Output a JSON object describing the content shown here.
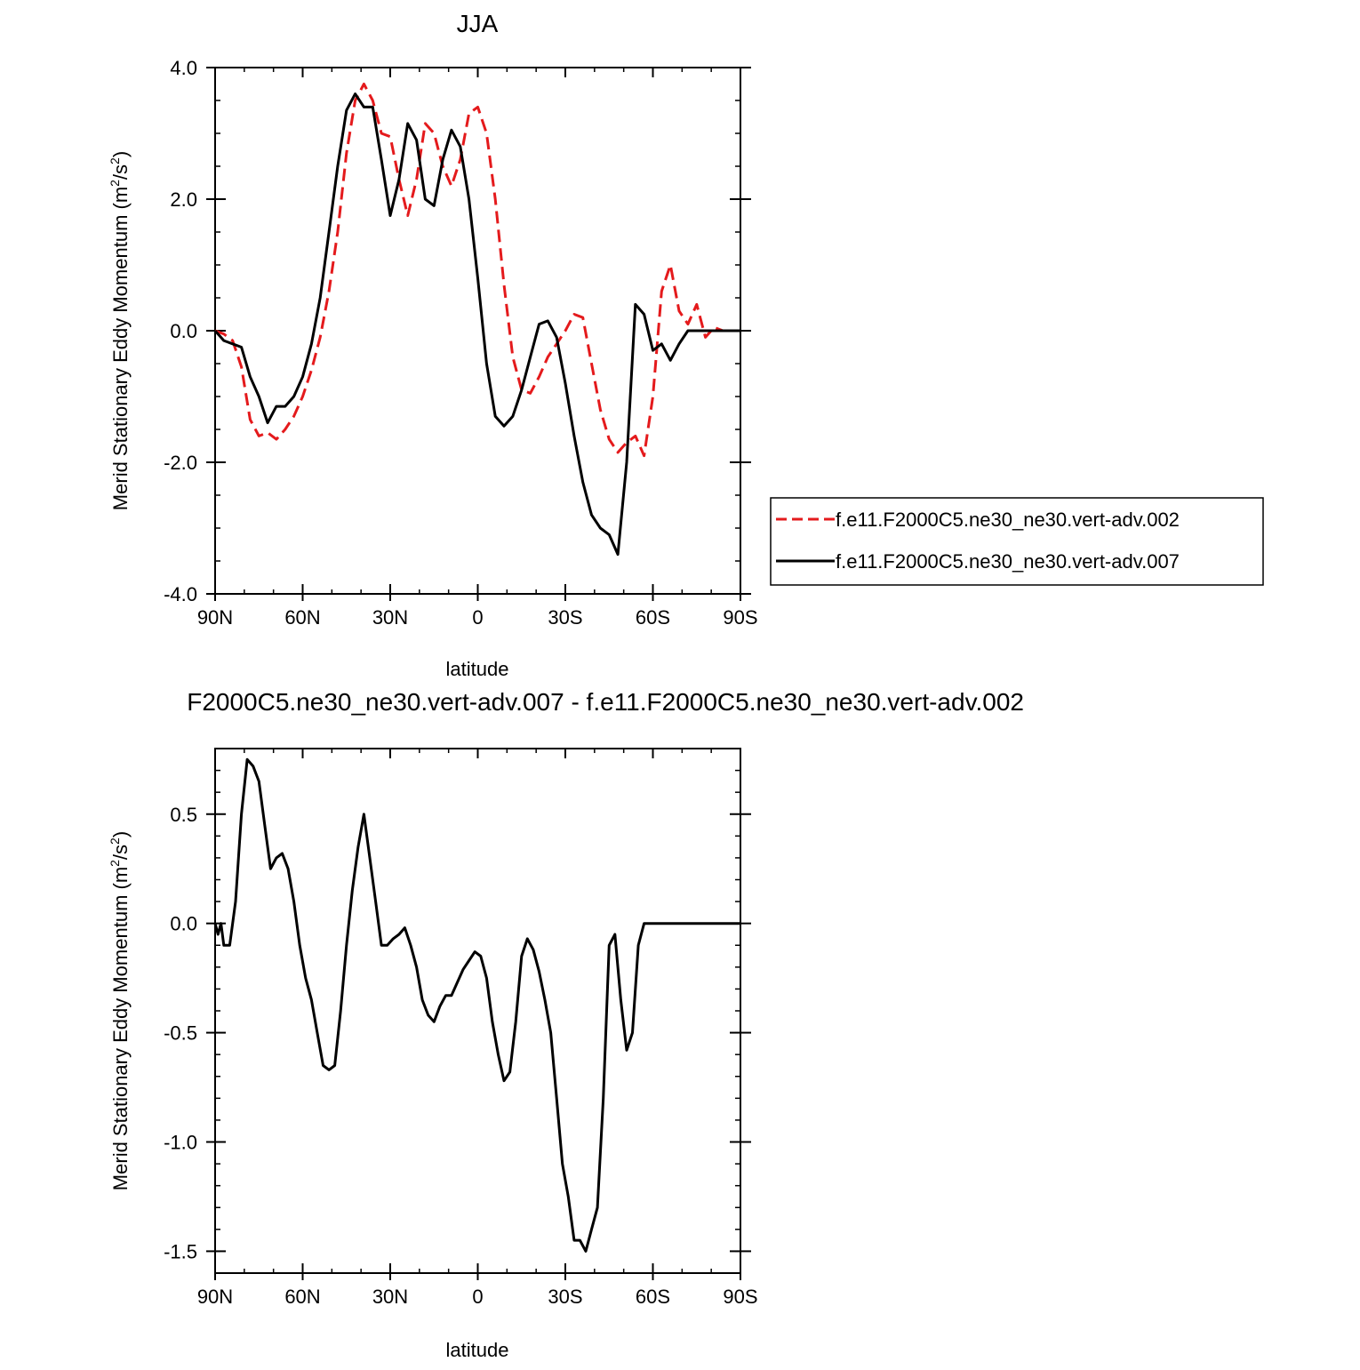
{
  "chart_data": [
    {
      "type": "line",
      "title": "JJA",
      "xlabel": "latitude",
      "ylabel": "Merid Stationary Eddy Momentum (m²/s²)",
      "ylabel_main": "Merid Stationary Eddy Momentum (m",
      "ylabel_sup1": "2",
      "ylabel_mid": "/s",
      "ylabel_sup2": "2",
      "ylabel_end": ")",
      "xlim": [
        90,
        -90
      ],
      "ylim": [
        -4,
        4
      ],
      "x_ticks": [
        {
          "value": 90,
          "label": "90N"
        },
        {
          "value": 60,
          "label": "60N"
        },
        {
          "value": 30,
          "label": "30N"
        },
        {
          "value": 0,
          "label": "0"
        },
        {
          "value": -30,
          "label": "30S"
        },
        {
          "value": -60,
          "label": "60S"
        },
        {
          "value": -90,
          "label": "90S"
        }
      ],
      "y_ticks": [
        {
          "value": 4,
          "label": "4.0"
        },
        {
          "value": 2,
          "label": "2.0"
        },
        {
          "value": 0,
          "label": "0.0"
        },
        {
          "value": -2,
          "label": "-2.0"
        },
        {
          "value": -4,
          "label": "-4.0"
        }
      ],
      "legend_position": "right",
      "series": [
        {
          "name": "f.e11.F2000C5.ne30_ne30.vert-adv.002",
          "color": "#e41a1c",
          "dash": "dashed",
          "x": [
            90,
            87,
            84,
            81,
            78,
            75,
            72,
            69,
            66,
            63,
            60,
            57,
            54,
            51,
            48,
            45,
            42,
            39,
            36,
            33,
            30,
            27,
            24,
            21,
            18,
            15,
            12,
            9,
            6,
            3,
            0,
            -3,
            -6,
            -9,
            -12,
            -15,
            -18,
            -21,
            -24,
            -27,
            -30,
            -33,
            -36,
            -39,
            -42,
            -45,
            -48,
            -51,
            -54,
            -57,
            -60,
            -63,
            -66,
            -69,
            -72,
            -75,
            -78,
            -81,
            -84,
            -87,
            -90
          ],
          "y": [
            0.0,
            -0.05,
            -0.15,
            -0.55,
            -1.35,
            -1.6,
            -1.55,
            -1.65,
            -1.5,
            -1.3,
            -1.0,
            -0.6,
            -0.1,
            0.6,
            1.5,
            2.7,
            3.5,
            3.75,
            3.5,
            3.0,
            2.95,
            2.3,
            1.75,
            2.3,
            3.15,
            3.0,
            2.5,
            2.2,
            2.6,
            3.3,
            3.4,
            3.0,
            2.0,
            0.7,
            -0.4,
            -0.9,
            -0.95,
            -0.7,
            -0.4,
            -0.2,
            0.0,
            0.25,
            0.2,
            -0.5,
            -1.2,
            -1.65,
            -1.85,
            -1.7,
            -1.6,
            -1.9,
            -1.0,
            0.6,
            1.0,
            0.3,
            0.1,
            0.4,
            -0.1,
            0.05,
            0.0,
            0.0,
            0.0
          ]
        },
        {
          "name": "f.e11.F2000C5.ne30_ne30.vert-adv.007",
          "color": "#000000",
          "dash": "solid",
          "x": [
            90,
            87,
            84,
            81,
            78,
            75,
            72,
            69,
            66,
            63,
            60,
            57,
            54,
            51,
            48,
            45,
            42,
            39,
            36,
            33,
            30,
            27,
            24,
            21,
            18,
            15,
            12,
            9,
            6,
            3,
            0,
            -3,
            -6,
            -9,
            -12,
            -15,
            -18,
            -21,
            -24,
            -27,
            -30,
            -33,
            -36,
            -39,
            -42,
            -45,
            -48,
            -51,
            -54,
            -57,
            -60,
            -63,
            -66,
            -69,
            -72,
            -75,
            -78,
            -81,
            -84,
            -87,
            -90
          ],
          "y": [
            0.0,
            -0.15,
            -0.2,
            -0.25,
            -0.7,
            -1.0,
            -1.4,
            -1.15,
            -1.15,
            -1.0,
            -0.7,
            -0.2,
            0.5,
            1.5,
            2.5,
            3.35,
            3.6,
            3.4,
            3.4,
            2.6,
            1.75,
            2.3,
            3.15,
            2.9,
            2.0,
            1.9,
            2.6,
            3.05,
            2.8,
            2.0,
            0.8,
            -0.5,
            -1.3,
            -1.45,
            -1.3,
            -0.9,
            -0.4,
            0.1,
            0.15,
            -0.1,
            -0.8,
            -1.6,
            -2.3,
            -2.8,
            -3.0,
            -3.1,
            -3.4,
            -2.0,
            0.4,
            0.25,
            -0.3,
            -0.2,
            -0.45,
            -0.2,
            0.0,
            0.0,
            0.0,
            0.0,
            0.0,
            0.0,
            0.0
          ]
        }
      ]
    },
    {
      "type": "line",
      "title": "F2000C5.ne30_ne30.vert-adv.007 - f.e11.F2000C5.ne30_ne30.vert-adv.002",
      "xlabel": "latitude",
      "ylabel": "Merid Stationary Eddy Momentum (m²/s²)",
      "ylabel_main": "Merid Stationary Eddy Momentum (m",
      "ylabel_sup1": "2",
      "ylabel_mid": "/s",
      "ylabel_sup2": "2",
      "ylabel_end": ")",
      "xlim": [
        90,
        -90
      ],
      "ylim": [
        -1.6,
        0.8
      ],
      "x_ticks": [
        {
          "value": 90,
          "label": "90N"
        },
        {
          "value": 60,
          "label": "60N"
        },
        {
          "value": 30,
          "label": "30N"
        },
        {
          "value": 0,
          "label": "0"
        },
        {
          "value": -30,
          "label": "30S"
        },
        {
          "value": -60,
          "label": "60S"
        },
        {
          "value": -90,
          "label": "90S"
        }
      ],
      "y_ticks": [
        {
          "value": 0.5,
          "label": "0.5"
        },
        {
          "value": 0.0,
          "label": "0.0"
        },
        {
          "value": -0.5,
          "label": "-0.5"
        },
        {
          "value": -1.0,
          "label": "-1.0"
        },
        {
          "value": -1.5,
          "label": "-1.5"
        }
      ],
      "series": [
        {
          "color": "#000000",
          "dash": "solid",
          "x": [
            90,
            89,
            88,
            87,
            85,
            83,
            81,
            79,
            77,
            75,
            73,
            71,
            69,
            67,
            65,
            63,
            61,
            59,
            57,
            55,
            53,
            51,
            49,
            47,
            45,
            43,
            41,
            39,
            37,
            35,
            33,
            31,
            29,
            27,
            25,
            23,
            21,
            19,
            17,
            15,
            13,
            11,
            9,
            7,
            5,
            3,
            1,
            -1,
            -3,
            -5,
            -7,
            -9,
            -11,
            -13,
            -15,
            -17,
            -19,
            -21,
            -23,
            -25,
            -27,
            -29,
            -31,
            -33,
            -35,
            -37,
            -39,
            -41,
            -43,
            -45,
            -47,
            -49,
            -51,
            -53,
            -55,
            -57,
            -59,
            -61,
            -63,
            -65,
            -67,
            -69,
            -71,
            -73,
            -75,
            -77,
            -79,
            -81,
            -83,
            -85,
            -87,
            -89,
            -90
          ],
          "y": [
            0.0,
            -0.05,
            0.0,
            -0.1,
            -0.1,
            0.1,
            0.5,
            0.75,
            0.72,
            0.65,
            0.45,
            0.25,
            0.3,
            0.32,
            0.25,
            0.1,
            -0.1,
            -0.25,
            -0.35,
            -0.5,
            -0.65,
            -0.67,
            -0.65,
            -0.4,
            -0.1,
            0.15,
            0.35,
            0.5,
            0.3,
            0.1,
            -0.1,
            -0.1,
            -0.07,
            -0.05,
            -0.02,
            -0.1,
            -0.2,
            -0.35,
            -0.42,
            -0.45,
            -0.38,
            -0.33,
            -0.33,
            -0.27,
            -0.21,
            -0.17,
            -0.13,
            -0.15,
            -0.25,
            -0.45,
            -0.6,
            -0.72,
            -0.68,
            -0.45,
            -0.15,
            -0.07,
            -0.12,
            -0.22,
            -0.35,
            -0.5,
            -0.8,
            -1.1,
            -1.25,
            -1.45,
            -1.45,
            -1.5,
            -1.4,
            -1.3,
            -0.8,
            -0.1,
            -0.05,
            -0.35,
            -0.58,
            -0.5,
            -0.1,
            0.0,
            0.0,
            0.0,
            0.0,
            0.0,
            0.0,
            0.0,
            0.0,
            0.0,
            0.0,
            0.0,
            0.0,
            0.0,
            0.0,
            0.0,
            0.0,
            0.0,
            0.0
          ]
        }
      ]
    }
  ]
}
